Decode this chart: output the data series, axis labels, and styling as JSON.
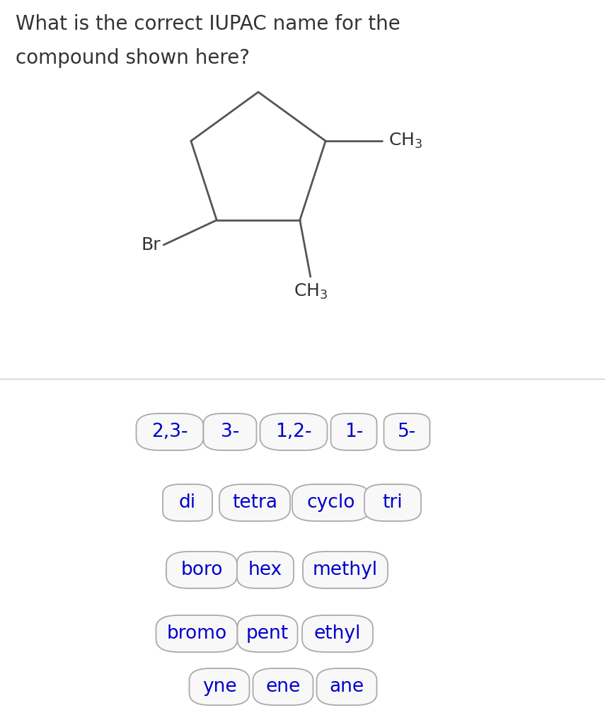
{
  "title_line1": "What is the correct IUPAC name for the",
  "title_line2": "compound shown here?",
  "title_fontsize": 20,
  "title_color": "#333333",
  "bg_top": "#ffffff",
  "bg_bottom": "#e2e2e2",
  "molecule": {
    "ring_color": "#555555",
    "ring_linewidth": 2.0
  },
  "buttons_row1": [
    "2,3-",
    "3-",
    "1,2-",
    "1-",
    "5-"
  ],
  "buttons_row2": [
    "di",
    "tetra",
    "cyclo",
    "tri"
  ],
  "buttons_row3": [
    "boro",
    "hex",
    "methyl"
  ],
  "buttons_row4": [
    "bromo",
    "pent",
    "ethyl"
  ],
  "buttons_row5": [
    "yne",
    "ene",
    "ane"
  ],
  "button_text_color": "#0000cc",
  "button_bg": "#f8f8f8",
  "button_edge": "#aaaaaa",
  "button_fontsize": 19
}
